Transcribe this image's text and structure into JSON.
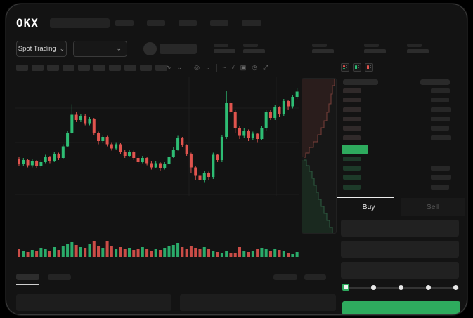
{
  "colors": {
    "green": "#2EAB5E",
    "candle_green": "#2ebd74",
    "candle_red": "#e0544e",
    "bid_bar": "#1d3a29",
    "ask_bar": "#302a2a",
    "amount_bar": "#272727",
    "grid": "#1e1e1e",
    "depth_ask_fill": "rgba(214,88,78,0.10)",
    "depth_ask_line": "#7a3f3a",
    "depth_bid_fill": "rgba(46,171,94,0.12)",
    "depth_bid_line": "#2d5c41"
  },
  "topbar": {
    "logo": "OKX",
    "nav_placeholder_widths": [
      26,
      26,
      26,
      26,
      28
    ]
  },
  "controls": {
    "market_selector_label": "Spot Trading",
    "chevron": "⌄",
    "stat_group_x": [
      295,
      337,
      435,
      509,
      570
    ]
  },
  "toolbar": {
    "placeholder_count": 10,
    "icons": [
      {
        "type": "divider"
      },
      {
        "type": "icon",
        "glyph": "∿",
        "name": "chart-style-icon"
      },
      {
        "type": "icon",
        "glyph": "⌄",
        "name": "chart-style-chevron-icon"
      },
      {
        "type": "divider"
      },
      {
        "type": "icon",
        "glyph": "◎",
        "name": "indicator-icon"
      },
      {
        "type": "icon",
        "glyph": "⌄",
        "name": "indicator-chevron-icon"
      },
      {
        "type": "divider"
      },
      {
        "type": "icon",
        "glyph": "~",
        "name": "line-tool-icon"
      },
      {
        "type": "icon",
        "glyph": "⫽",
        "name": "draw-tool-icon"
      },
      {
        "type": "icon",
        "glyph": "▣",
        "name": "camera-icon"
      },
      {
        "type": "icon",
        "glyph": "◷",
        "name": "history-icon"
      },
      {
        "type": "icon",
        "glyph": "⤢",
        "name": "fullscreen-icon"
      }
    ]
  },
  "chart_data": {
    "type": "candlestick",
    "title": "",
    "xlabel": "",
    "ylabel": "",
    "note": "no axis tick labels visible; price values normalized to 0-100 scale",
    "ylim": [
      0,
      100
    ],
    "candles": [
      [
        33,
        28,
        35,
        26
      ],
      [
        28,
        32,
        34,
        26
      ],
      [
        32,
        27,
        33,
        25
      ],
      [
        27,
        31,
        33,
        25
      ],
      [
        31,
        26,
        32,
        24
      ],
      [
        26,
        30,
        32,
        24
      ],
      [
        30,
        35,
        37,
        29
      ],
      [
        35,
        31,
        36,
        29
      ],
      [
        31,
        38,
        40,
        30
      ],
      [
        38,
        34,
        39,
        32
      ],
      [
        34,
        45,
        47,
        33
      ],
      [
        45,
        58,
        60,
        44
      ],
      [
        58,
        75,
        85,
        57
      ],
      [
        75,
        70,
        78,
        68
      ],
      [
        70,
        74,
        76,
        68
      ],
      [
        74,
        67,
        76,
        65
      ],
      [
        67,
        71,
        73,
        65
      ],
      [
        71,
        58,
        72,
        56
      ],
      [
        58,
        50,
        59,
        47
      ],
      [
        50,
        54,
        56,
        48
      ],
      [
        54,
        47,
        55,
        45
      ],
      [
        47,
        43,
        49,
        41
      ],
      [
        43,
        47,
        49,
        42
      ],
      [
        47,
        40,
        48,
        38
      ],
      [
        40,
        36,
        42,
        34
      ],
      [
        36,
        40,
        42,
        35
      ],
      [
        40,
        34,
        41,
        32
      ],
      [
        34,
        30,
        36,
        28
      ],
      [
        30,
        34,
        36,
        29
      ],
      [
        34,
        29,
        35,
        27
      ],
      [
        29,
        25,
        31,
        23
      ],
      [
        25,
        29,
        31,
        24
      ],
      [
        29,
        24,
        30,
        22
      ],
      [
        24,
        28,
        30,
        23
      ],
      [
        28,
        35,
        37,
        27
      ],
      [
        35,
        42,
        44,
        34
      ],
      [
        42,
        53,
        55,
        41
      ],
      [
        53,
        46,
        54,
        44
      ],
      [
        46,
        38,
        47,
        36
      ],
      [
        38,
        25,
        39,
        20
      ],
      [
        25,
        17,
        26,
        13
      ],
      [
        17,
        13,
        19,
        10
      ],
      [
        13,
        20,
        22,
        11
      ],
      [
        20,
        16,
        21,
        13
      ],
      [
        16,
        37,
        39,
        14
      ],
      [
        37,
        32,
        38,
        30
      ],
      [
        32,
        54,
        56,
        30
      ],
      [
        54,
        86,
        98,
        52
      ],
      [
        86,
        78,
        88,
        76
      ],
      [
        78,
        62,
        80,
        58
      ],
      [
        62,
        55,
        64,
        52
      ],
      [
        55,
        60,
        62,
        53
      ],
      [
        60,
        53,
        61,
        50
      ],
      [
        53,
        57,
        59,
        51
      ],
      [
        57,
        52,
        58,
        49
      ],
      [
        52,
        62,
        64,
        51
      ],
      [
        62,
        78,
        80,
        60
      ],
      [
        78,
        72,
        80,
        70
      ],
      [
        72,
        82,
        84,
        70
      ],
      [
        82,
        76,
        83,
        73
      ],
      [
        76,
        88,
        90,
        74
      ],
      [
        88,
        83,
        89,
        80
      ],
      [
        83,
        92,
        94,
        81
      ],
      [
        92,
        97,
        100,
        90
      ]
    ],
    "volume": [
      12,
      9,
      7,
      10,
      8,
      13,
      11,
      9,
      14,
      10,
      16,
      19,
      21,
      17,
      14,
      13,
      18,
      22,
      16,
      13,
      23,
      15,
      12,
      14,
      11,
      13,
      10,
      12,
      14,
      11,
      9,
      12,
      10,
      13,
      15,
      17,
      20,
      14,
      12,
      16,
      13,
      11,
      14,
      12,
      9,
      7,
      6,
      8,
      5,
      6,
      14,
      8,
      7,
      9,
      12,
      13,
      11,
      9,
      12,
      10,
      8,
      5,
      4,
      7
    ],
    "grid_h": [
      45,
      94,
      168
    ],
    "grid_v": [
      248,
      372
    ]
  },
  "depth_chart": {
    "type": "area",
    "orientation": "vertical",
    "ask_line": [
      [
        46,
        0
      ],
      [
        46,
        10
      ],
      [
        43,
        10
      ],
      [
        43,
        22
      ],
      [
        41,
        22
      ],
      [
        41,
        36
      ],
      [
        38,
        36
      ],
      [
        38,
        48
      ],
      [
        35,
        48
      ],
      [
        35,
        60
      ],
      [
        31,
        60
      ],
      [
        31,
        70
      ],
      [
        27,
        70
      ],
      [
        27,
        80
      ],
      [
        22,
        80
      ],
      [
        22,
        90
      ],
      [
        16,
        90
      ],
      [
        16,
        98
      ],
      [
        10,
        98
      ],
      [
        10,
        106
      ],
      [
        5,
        106
      ],
      [
        5,
        112
      ],
      [
        2,
        112
      ]
    ],
    "bid_line": [
      [
        2,
        116
      ],
      [
        6,
        116
      ],
      [
        6,
        124
      ],
      [
        10,
        124
      ],
      [
        10,
        132
      ],
      [
        14,
        132
      ],
      [
        14,
        142
      ],
      [
        17,
        142
      ],
      [
        17,
        152
      ],
      [
        20,
        152
      ],
      [
        20,
        162
      ],
      [
        23,
        162
      ],
      [
        23,
        172
      ],
      [
        27,
        172
      ],
      [
        27,
        182
      ],
      [
        31,
        182
      ],
      [
        31,
        192
      ],
      [
        35,
        192
      ],
      [
        35,
        202
      ],
      [
        39,
        202
      ],
      [
        39,
        212
      ],
      [
        43,
        212
      ],
      [
        43,
        222
      ]
    ]
  },
  "order_book": {
    "mode_icons": [
      {
        "name": "book-both-icon",
        "stripes": [
          "#e0544e",
          "#2ebd74"
        ]
      },
      {
        "name": "book-bids-icon",
        "stripes": [
          "#2ebd74"
        ]
      },
      {
        "name": "book-asks-icon",
        "stripes": [
          "#e0544e"
        ]
      }
    ],
    "ask_rows": [
      [
        26,
        27
      ],
      [
        25,
        26
      ],
      [
        26,
        28
      ],
      [
        25,
        27
      ],
      [
        26,
        26
      ],
      [
        25,
        28
      ]
    ],
    "bid_rows": [
      [
        26,
        0
      ],
      [
        25,
        27
      ],
      [
        26,
        28
      ],
      [
        25,
        26
      ]
    ]
  },
  "trade_panel": {
    "buy_tab": "Buy",
    "sell_tab": "Sell",
    "field_count": 3,
    "slider": {
      "stops": [
        0,
        25,
        50,
        75,
        100
      ],
      "value": 0
    }
  }
}
